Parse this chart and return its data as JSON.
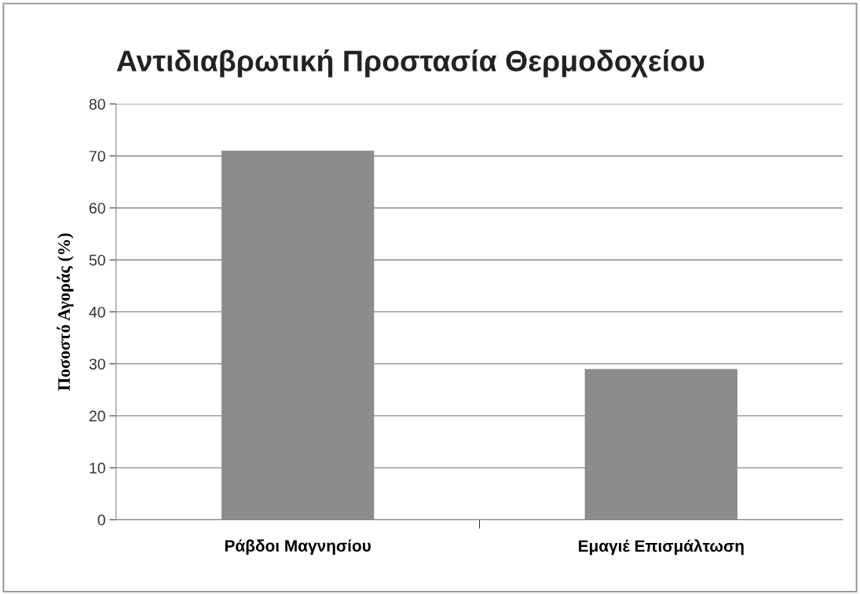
{
  "chart_data": {
    "type": "bar",
    "title": "Αντιδιαβρωτική Προστασία Θερμοδοχείου",
    "ylabel": "Ποσοστό Αγοράς (%)",
    "categories": [
      "Ράβδοι Μαγνησίου",
      "Εμαγιέ Επισμάλτωση"
    ],
    "values": [
      71,
      29
    ],
    "color": "#8c8c8c",
    "ylim": [
      0,
      80
    ],
    "yticks": [
      0,
      10,
      20,
      30,
      40,
      50,
      60,
      70,
      80
    ],
    "grid": "y",
    "legend": false
  }
}
